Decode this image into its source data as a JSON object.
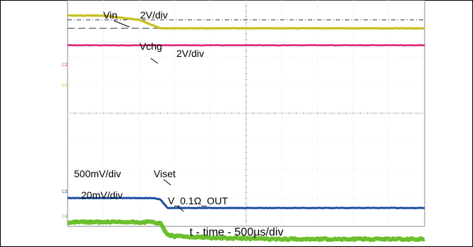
{
  "chart_data": {
    "type": "line",
    "title": "",
    "xlabel": "t - time - 500µs/div",
    "ylabel": "",
    "grid": true,
    "divisions": {
      "x": 10,
      "y": 8
    },
    "x": [
      0,
      0.5,
      1.0,
      1.2,
      1.3,
      1.4,
      1.5,
      2.0,
      3.0,
      4.0,
      5.0
    ],
    "x_units": "ms",
    "channels": [
      {
        "id": "C1",
        "name": "Vin",
        "scale": "2V/div",
        "color": "#c8c020",
        "values_div": [
          3.45,
          3.45,
          3.3,
          3.1,
          3.0,
          3.0,
          3.0,
          3.0,
          3.0,
          3.0,
          3.0
        ],
        "ref_lines_div": [
          3.3,
          3.0
        ]
      },
      {
        "id": "C2",
        "name": "Vchg",
        "scale": "2V/div",
        "color": "#e0237a",
        "values_div": [
          2.4,
          2.4,
          2.4,
          2.4,
          2.4,
          2.4,
          2.4,
          2.4,
          2.4,
          2.4,
          2.4
        ]
      },
      {
        "id": "C3",
        "name": "Viset",
        "scale": "500mV/div",
        "color": "#1f4fa3",
        "values_div": [
          -3.0,
          -3.0,
          -3.0,
          -3.0,
          -3.05,
          -3.35,
          -3.35,
          -3.35,
          -3.35,
          -3.35,
          -3.35
        ]
      },
      {
        "id": "C4",
        "name": "V_0.1Ω_OUT",
        "scale": "20mV/div",
        "color": "#6cbf2e",
        "values_div": [
          -3.85,
          -3.85,
          -3.85,
          -3.85,
          -3.9,
          -4.3,
          -4.35,
          -4.4,
          -4.45,
          -4.45,
          -4.45
        ]
      }
    ]
  },
  "labels": {
    "vin": "Vin",
    "vin_scale": "2V/div",
    "vchg": "Vchg",
    "vchg_scale": "2V/div",
    "viset_scale": "500mV/div",
    "viset": "Viset",
    "out_scale": "20mV/div",
    "out": "V_0.1Ω_OUT",
    "markers": {
      "c1": "C1",
      "c2": "C2",
      "c3": "C3",
      "c4": "C4"
    }
  }
}
